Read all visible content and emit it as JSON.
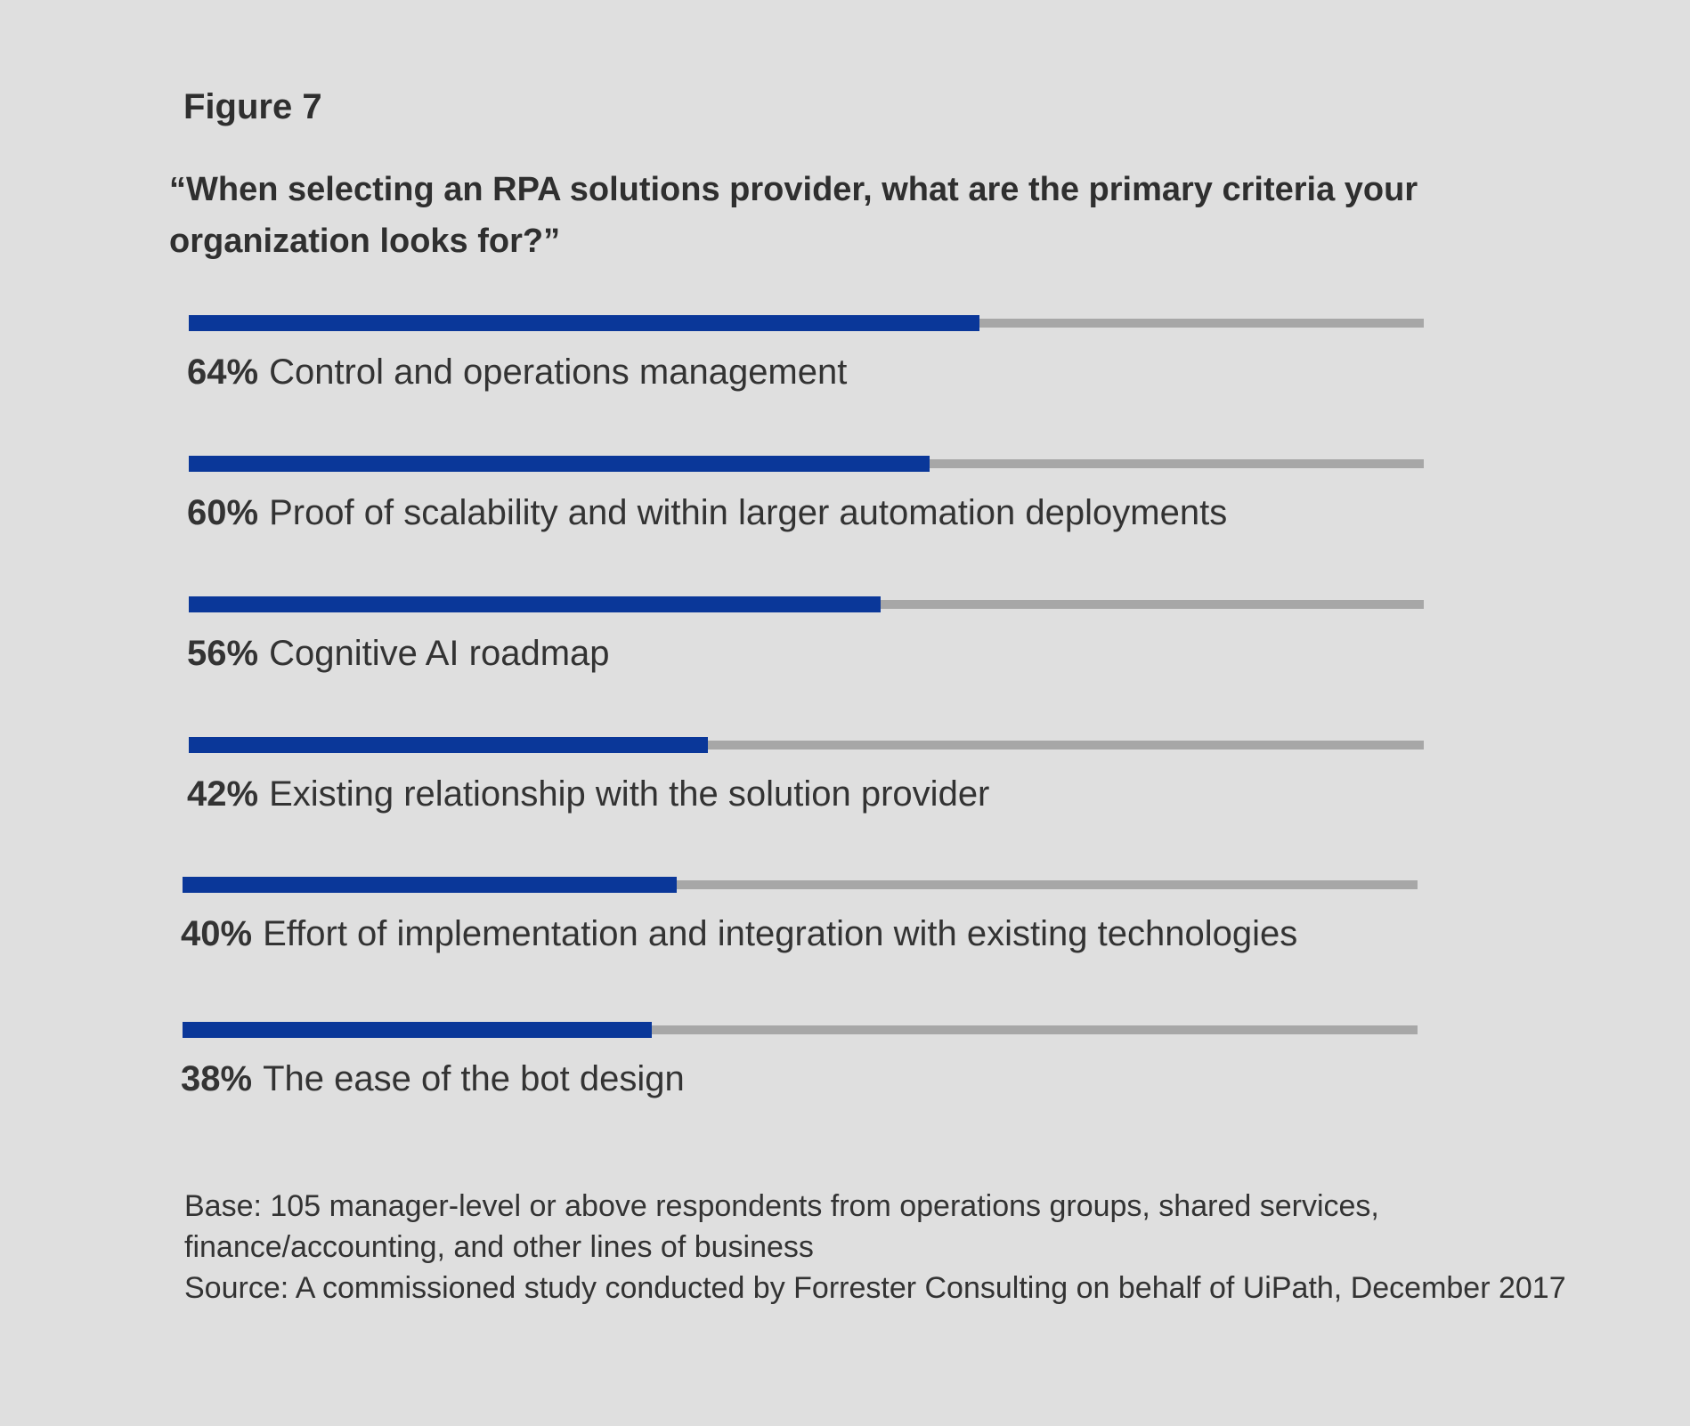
{
  "figure_label": "Figure 7",
  "question": "“When selecting an RPA solutions provider, what are the primary criteria your organization looks for?”",
  "colors": {
    "background": "#dfdfdf",
    "bar_fill": "#0a3799",
    "bar_track": "#a7a7a7"
  },
  "chart_data": {
    "type": "bar",
    "orientation": "horizontal",
    "title": "“When selecting an RPA solutions provider, what are the primary criteria your organization looks for?”",
    "xlim": [
      0,
      100
    ],
    "grid": false,
    "items": [
      {
        "value": 64,
        "value_label": "64%",
        "label": "Control and operations management"
      },
      {
        "value": 60,
        "value_label": "60%",
        "label": "Proof of scalability and within larger automation deployments"
      },
      {
        "value": 56,
        "value_label": "56%",
        "label": "Cognitive AI roadmap"
      },
      {
        "value": 42,
        "value_label": "42%",
        "label": "Existing relationship with the solution provider"
      },
      {
        "value": 40,
        "value_label": "40%",
        "label": "Effort of implementation and integration with existing technologies"
      },
      {
        "value": 38,
        "value_label": "38%",
        "label": "The ease of the bot design"
      }
    ]
  },
  "notes": {
    "base": "Base: 105 manager-level or above respondents from operations groups, shared services, finance/accounting, and other lines of business",
    "source": "Source: A commissioned study conducted by Forrester Consulting on behalf of UiPath, December 2017"
  }
}
